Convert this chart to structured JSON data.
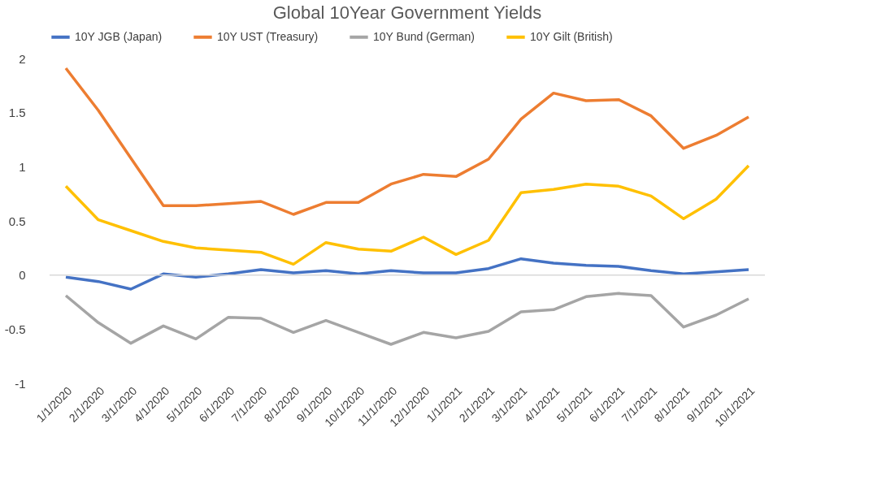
{
  "chart_data": {
    "type": "line",
    "title": "Global 10Year Government Yields",
    "categories": [
      "1/1/2020",
      "2/1/2020",
      "3/1/2020",
      "4/1/2020",
      "5/1/2020",
      "6/1/2020",
      "7/1/2020",
      "8/1/2020",
      "9/1/2020",
      "10/1/2020",
      "11/1/2020",
      "12/1/2020",
      "1/1/2021",
      "2/1/2021",
      "3/1/2021",
      "4/1/2021",
      "5/1/2021",
      "6/1/2021",
      "7/1/2021",
      "8/1/2021",
      "9/1/2021",
      "10/1/2021"
    ],
    "series": [
      {
        "name": "10Y JGB (Japan)",
        "color": "#4472c4",
        "values": [
          -0.02,
          -0.06,
          -0.13,
          0.01,
          -0.02,
          0.01,
          0.05,
          0.02,
          0.04,
          0.01,
          0.04,
          0.02,
          0.02,
          0.06,
          0.15,
          0.11,
          0.09,
          0.08,
          0.04,
          0.01,
          0.03,
          0.05
        ]
      },
      {
        "name": "10Y UST (Treasury)",
        "color": "#ed7d31",
        "values": [
          1.91,
          1.52,
          1.08,
          0.64,
          0.64,
          0.66,
          0.68,
          0.56,
          0.67,
          0.67,
          0.84,
          0.93,
          0.91,
          1.07,
          1.44,
          1.68,
          1.61,
          1.62,
          1.47,
          1.17,
          1.29,
          1.46
        ]
      },
      {
        "name": "10Y Bund (German)",
        "color": "#a5a5a5",
        "values": [
          -0.19,
          -0.44,
          -0.63,
          -0.47,
          -0.59,
          -0.39,
          -0.4,
          -0.53,
          -0.42,
          -0.53,
          -0.64,
          -0.53,
          -0.58,
          -0.52,
          -0.34,
          -0.32,
          -0.2,
          -0.17,
          -0.19,
          -0.48,
          -0.37,
          -0.22
        ]
      },
      {
        "name": "10Y Gilt (British)",
        "color": "#ffc000",
        "values": [
          0.82,
          0.51,
          0.41,
          0.31,
          0.25,
          0.23,
          0.21,
          0.1,
          0.3,
          0.24,
          0.22,
          0.35,
          0.19,
          0.32,
          0.76,
          0.79,
          0.84,
          0.82,
          0.73,
          0.52,
          0.7,
          1.01
        ]
      }
    ],
    "ylim": [
      -1,
      2
    ],
    "yticks": [
      -1,
      -0.5,
      0,
      0.5,
      1,
      1.5,
      2
    ],
    "ref_lines": [
      {
        "axis": "y",
        "value": 0,
        "color": "#d9d9d9"
      }
    ],
    "legend": "top",
    "grid": false,
    "marker": "none",
    "line_style": "solid"
  }
}
